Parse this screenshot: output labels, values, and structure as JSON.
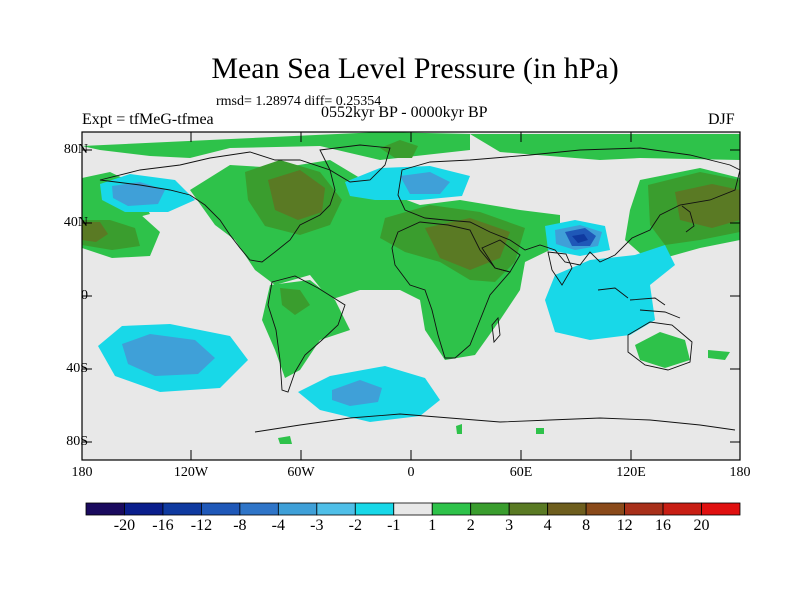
{
  "title": "Mean Sea Level Pressure (in hPa)",
  "stats": "rmsd= 1.28974 diff= 0.25354",
  "experiment": "Expt = tfMeG-tfmea",
  "period": "0552kyr BP - 0000kyr BP",
  "season": "DJF",
  "axes": {
    "lon_labels": [
      "180",
      "120W",
      "60W",
      "0",
      "60E",
      "120E",
      "180"
    ],
    "lat_labels": [
      "80N",
      "40N",
      "0",
      "40S",
      "80S"
    ]
  },
  "colorbar": {
    "colors": [
      "#1a0a5e",
      "#0a1e8c",
      "#0f3aa0",
      "#1f58b8",
      "#2f75c8",
      "#3fa0d8",
      "#4fbfe8",
      "#18d8e8",
      "#e8e8e8",
      "#2ec24a",
      "#3a9d2e",
      "#5a7a24",
      "#6e5e1e",
      "#8a4a1a",
      "#a8301a",
      "#c81e14",
      "#e01010"
    ],
    "labels": [
      "-20",
      "-16",
      "-12",
      "-8",
      "-4",
      "-3",
      "-2",
      "-1",
      "1",
      "2",
      "3",
      "4",
      "8",
      "12",
      "16",
      "20"
    ]
  }
}
